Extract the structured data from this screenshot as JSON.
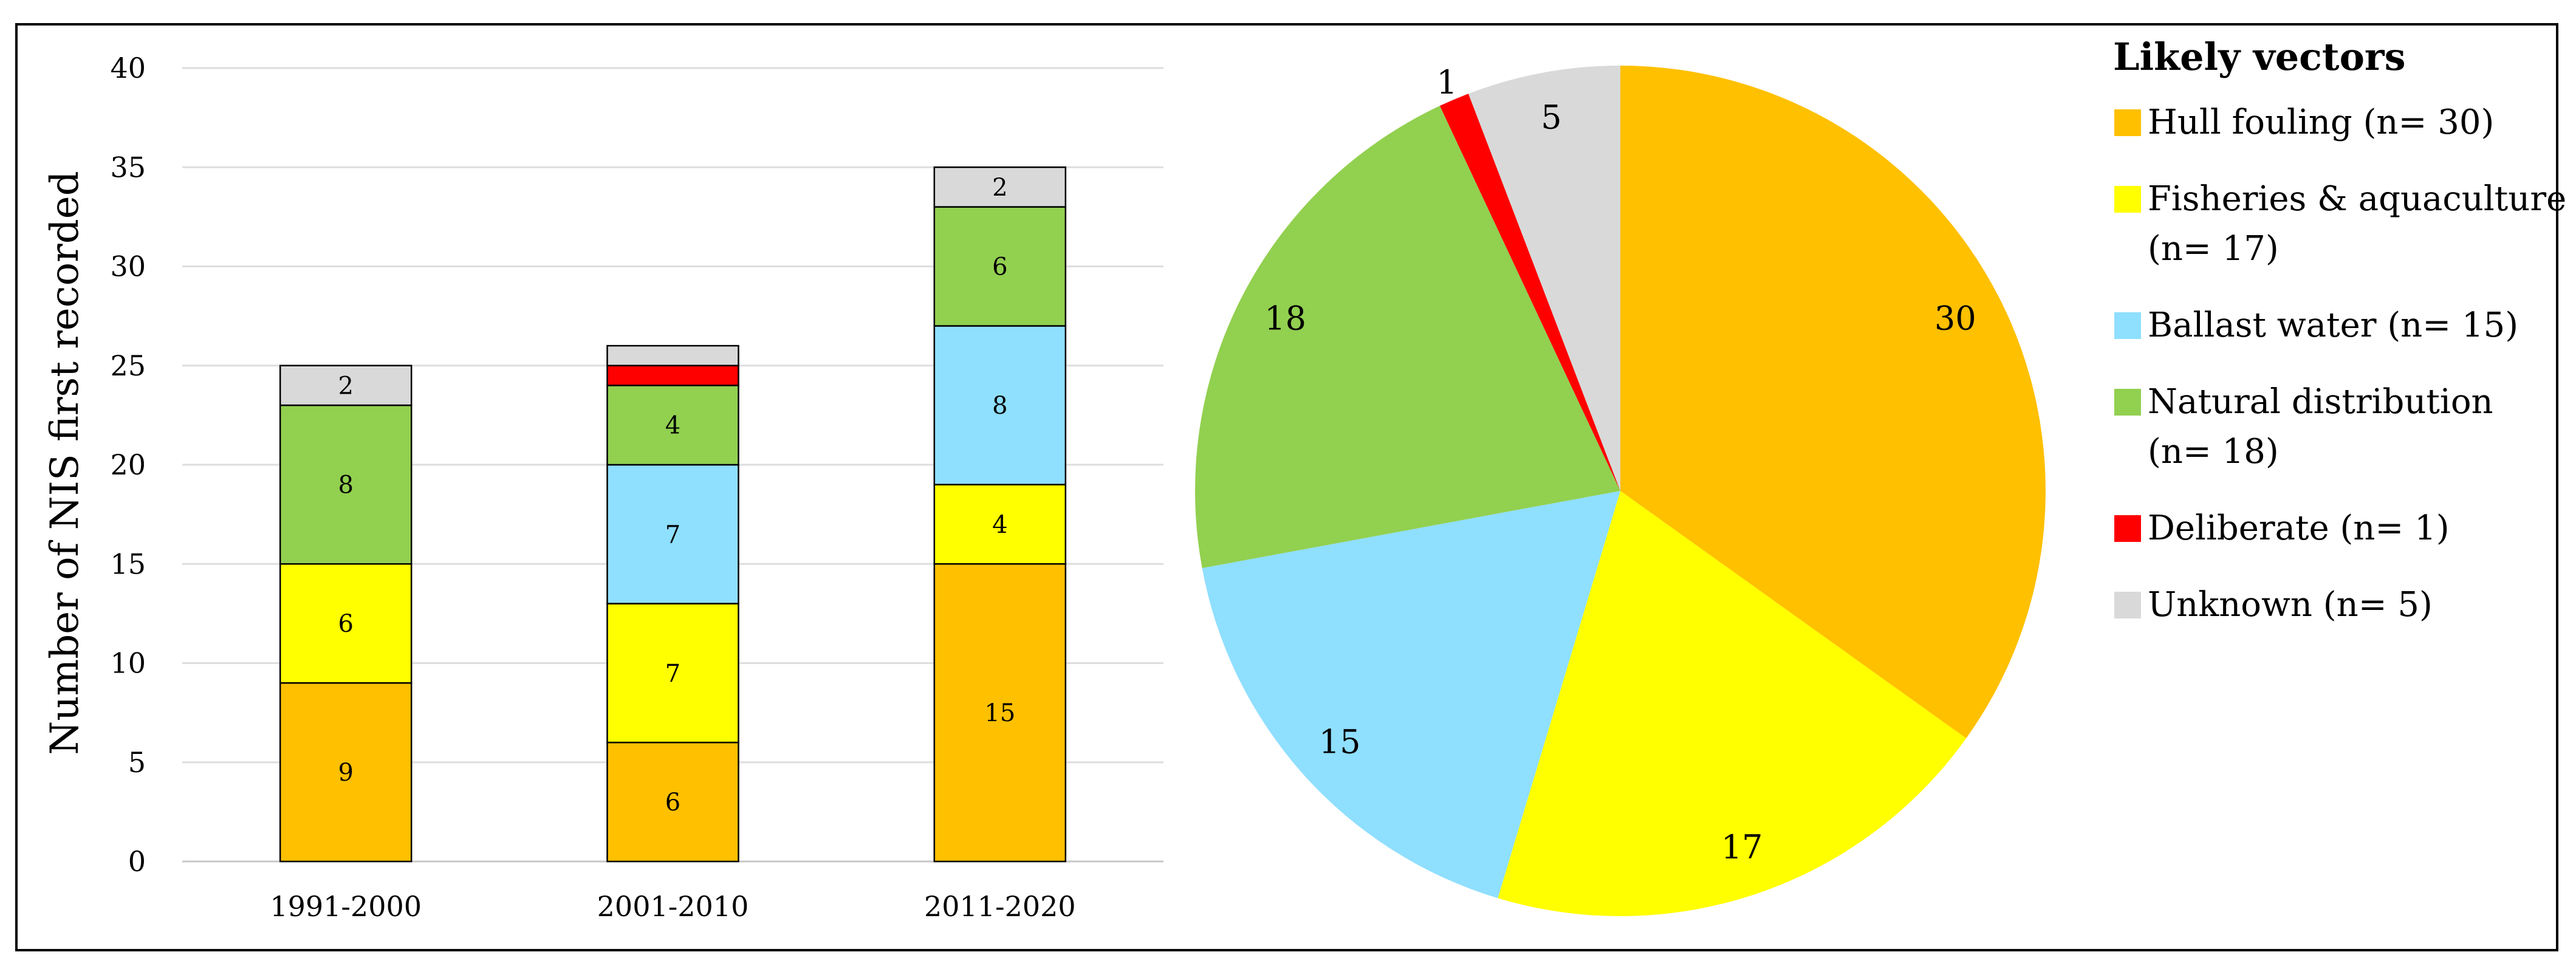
{
  "chart_data": [
    {
      "type": "bar",
      "stacked": true,
      "ylabel": "Number of NIS first recorded",
      "xlabel": "",
      "ylim": [
        0,
        40
      ],
      "yticks": [
        "0",
        "5",
        "10",
        "15",
        "20",
        "25",
        "30",
        "35",
        "40"
      ],
      "grid": true,
      "categories": [
        "1991-2000",
        "2001-2010",
        "2011-2020"
      ],
      "series": [
        {
          "name": "Hull fouling",
          "color": "#FFC000",
          "values": [
            9,
            6,
            15
          ],
          "labels": [
            "9",
            "6",
            "15"
          ]
        },
        {
          "name": "Fisheries & aquaculture",
          "color": "#FFFF00",
          "values": [
            6,
            7,
            4
          ],
          "labels": [
            "6",
            "7",
            "4"
          ]
        },
        {
          "name": "Ballast water",
          "color": "#8FDFFF",
          "values": [
            0,
            7,
            8
          ],
          "labels": [
            "",
            "7",
            "8"
          ]
        },
        {
          "name": "Natural distribution",
          "color": "#92D050",
          "values": [
            8,
            4,
            6
          ],
          "labels": [
            "8",
            "4",
            "6"
          ]
        },
        {
          "name": "Deliberate",
          "color": "#FF0000",
          "values": [
            0,
            1,
            0
          ],
          "labels": [
            "",
            "",
            ""
          ]
        },
        {
          "name": "Unknown",
          "color": "#D9D9D9",
          "values": [
            2,
            1,
            2
          ],
          "labels": [
            "2",
            "",
            "2"
          ]
        }
      ]
    },
    {
      "type": "pie",
      "slices": [
        {
          "label": "30",
          "value": 30,
          "color": "#FFC000"
        },
        {
          "label": "17",
          "value": 17,
          "color": "#FFFF00"
        },
        {
          "label": "15",
          "value": 15,
          "color": "#8FDFFF"
        },
        {
          "label": "18",
          "value": 18,
          "color": "#92D050"
        },
        {
          "label": "1",
          "value": 1,
          "color": "#FF0000"
        },
        {
          "label": "5",
          "value": 5,
          "color": "#D9D9D9"
        }
      ],
      "legend": {
        "title": "Likely vectors",
        "placement": "right",
        "items": [
          {
            "lines": [
              "Hull fouling (n= 30)"
            ],
            "color": "#FFC000"
          },
          {
            "lines": [
              "Fisheries & aquaculture",
              "(n= 17)"
            ],
            "color": "#FFFF00"
          },
          {
            "lines": [
              "Ballast water (n= 15)"
            ],
            "color": "#8FDFFF"
          },
          {
            "lines": [
              "Natural distribution",
              "(n= 18)"
            ],
            "color": "#92D050"
          },
          {
            "lines": [
              "Deliberate (n= 1)"
            ],
            "color": "#FF0000"
          },
          {
            "lines": [
              "Unknown (n= 5)"
            ],
            "color": "#D9D9D9"
          }
        ]
      }
    }
  ]
}
